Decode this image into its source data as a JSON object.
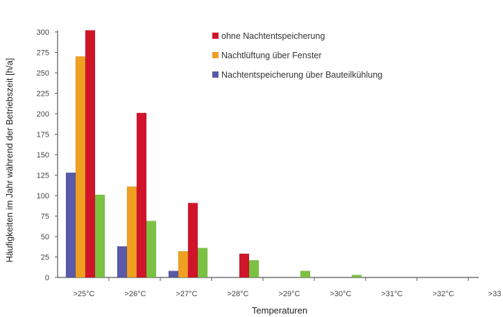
{
  "chart_data": {
    "type": "bar",
    "xlabel": "Temperaturen",
    "ylabel": "Häufigkeiten im Jahr während der Betriebszeit [h/a]",
    "categories": [
      ">25°C",
      ">26°C",
      ">27°C",
      ">28°C",
      ">29°C",
      ">30°C",
      ">31°C",
      ">32°C",
      ">33"
    ],
    "ylim": [
      0,
      300
    ],
    "yticks": [
      0,
      25,
      50,
      75,
      100,
      125,
      150,
      175,
      200,
      225,
      250,
      275,
      300
    ],
    "series_order": [
      "Nachtentspeicherung über Bauteilkühlung",
      "Nachtlüftung über Fenster",
      "ohne Nachtentspeicherung",
      "green"
    ],
    "series": [
      {
        "name": "Nachtentspeicherung über Bauteilkühlung",
        "color": "#5a5aa8",
        "values": [
          128,
          38,
          8,
          0,
          0,
          0,
          0,
          0,
          0
        ]
      },
      {
        "name": "Nachtlüftung über Fenster",
        "color": "#f0a020",
        "values": [
          270,
          111,
          32,
          0,
          0,
          0,
          0,
          0,
          0
        ]
      },
      {
        "name": "ohne Nachtentspeicherung",
        "color": "#d0152b",
        "values": [
          302,
          201,
          91,
          29,
          0,
          0,
          0,
          0,
          0
        ]
      },
      {
        "name": "",
        "color": "#7cc242",
        "values": [
          101,
          69,
          36,
          21,
          8,
          3,
          0,
          0,
          0
        ]
      }
    ],
    "legend_order": [
      "ohne Nachtentspeicherung",
      "Nachtlüftung über Fenster",
      "Nachtentspeicherung über Bauteilkühlung"
    ],
    "legend_placement": "top-right",
    "grid": false
  }
}
